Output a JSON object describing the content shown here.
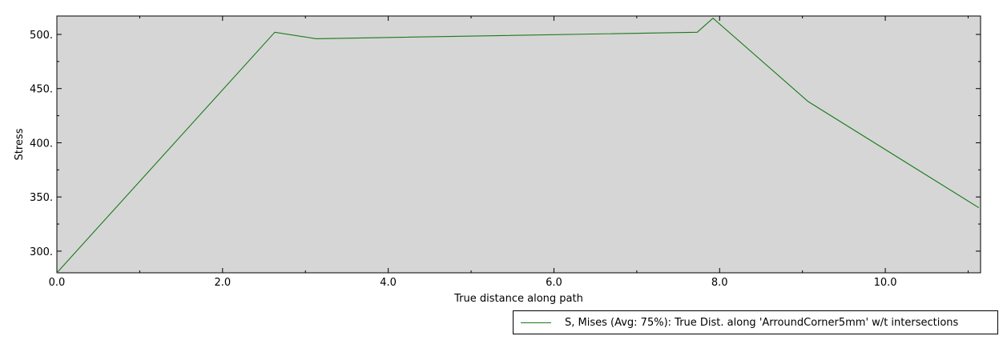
{
  "chart_data": {
    "type": "line",
    "xlabel": "True distance along path",
    "ylabel": "Stress",
    "xlim": [
      0,
      11.15
    ],
    "ylim": [
      280,
      517
    ],
    "x_ticks": [
      0,
      2,
      4,
      6,
      8,
      10
    ],
    "x_tick_labels": [
      "0.0",
      "2.0",
      "4.0",
      "6.0",
      "8.0",
      "10.0"
    ],
    "y_ticks": [
      300,
      350,
      400,
      450,
      500
    ],
    "y_tick_labels": [
      "300.",
      "350.",
      "400.",
      "450.",
      "500."
    ],
    "plot_background": "#d6d6d6",
    "grid": false,
    "legend_position": "bottom-right",
    "series": [
      {
        "name": "S, Mises (Avg: 75%): True Dist. along 'ArroundCorner5mm' w/t intersections",
        "color": "#1a7a1a",
        "x": [
          0.0,
          2.63,
          3.13,
          7.73,
          7.92,
          9.07,
          11.13
        ],
        "y": [
          280,
          502,
          496,
          502,
          515,
          438,
          340
        ]
      }
    ]
  }
}
